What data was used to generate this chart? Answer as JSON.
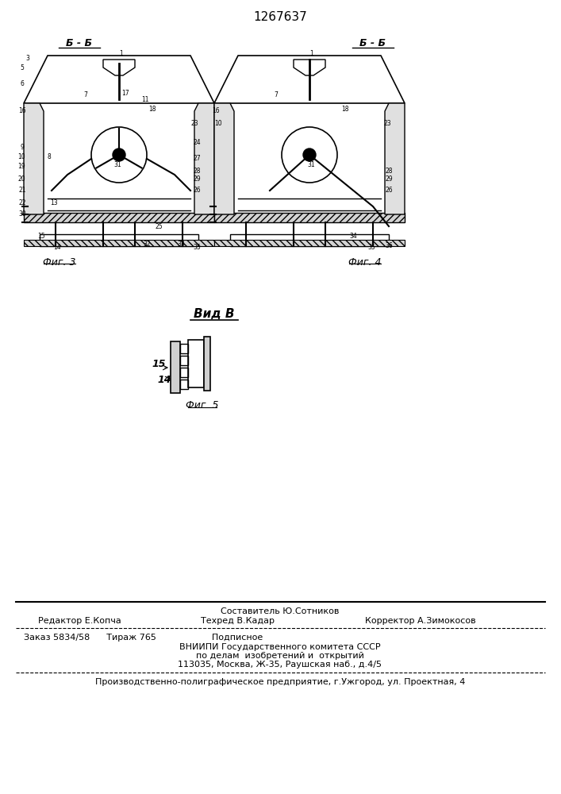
{
  "patent_number": "1267637",
  "bg_color": "#ffffff",
  "text_color": "#000000",
  "fig_width": 7.07,
  "fig_height": 10.0,
  "top_label": "Б - Б",
  "top_label2": "Б - Б",
  "fig3_label": "Фиг. 3",
  "fig4_label": "Фиг. 4",
  "fig5_label": "Фиг. 5",
  "vid_b_label": "Вид В",
  "footer_line1": "Составитель Ю.Сотников",
  "footer_line2_left": "Редактор Е.Копча",
  "footer_line2_mid": "Техред В.Кадар",
  "footer_line2_right": "Корректор А.Зимокосов",
  "footer_line3": "Заказ 5834/58      Тираж 765                    Подписное",
  "footer_line4": "ВНИИПИ Государственного комитета СССР",
  "footer_line5": "по делам  изобретений и  открытий",
  "footer_line6": "113035, Москва, Ж-35, Раушская наб., д.4/5",
  "footer_line7": "Производственно-полиграфическое предприятие, г.Ужгород, ул. Проектная, 4"
}
